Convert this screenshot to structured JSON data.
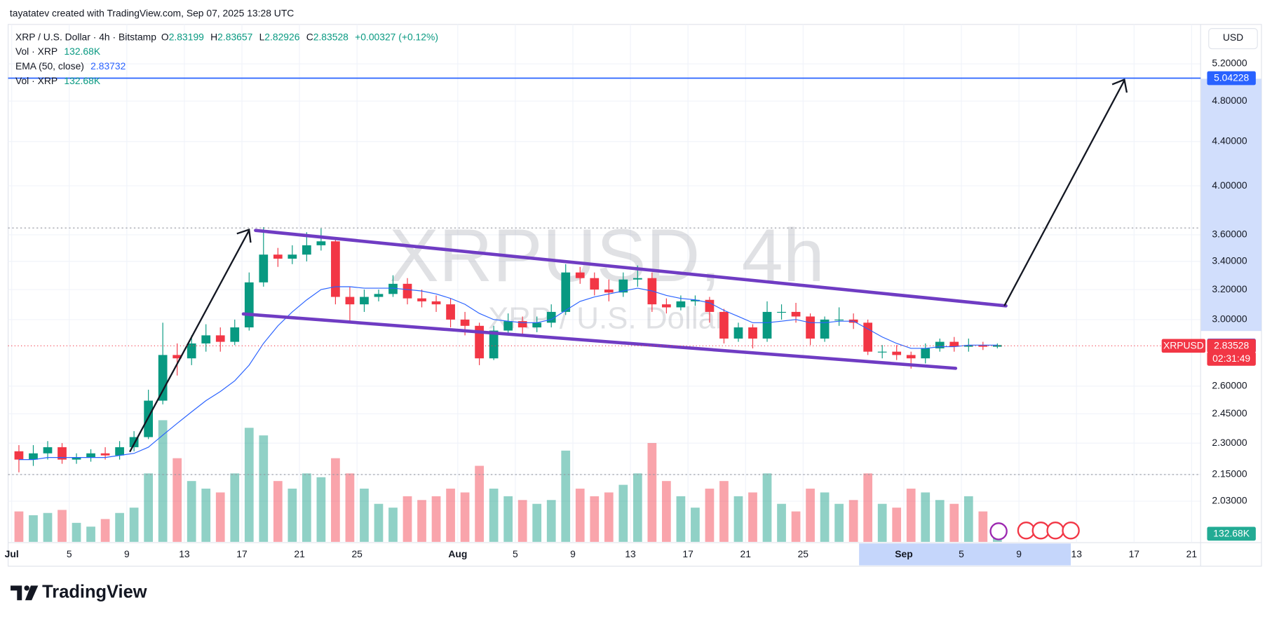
{
  "header": {
    "attribution": "tayatatev created with TradingView.com, Sep 07, 2025 13:28 UTC",
    "logo": "TradingView"
  },
  "legend": {
    "title": "XRP / U.S. Dollar · 4h · Bitstamp",
    "ohlc": [
      {
        "label": "O",
        "value": "2.83199"
      },
      {
        "label": "H",
        "value": "2.83657"
      },
      {
        "label": "L",
        "value": "2.82926"
      },
      {
        "label": "C",
        "value": "2.83528"
      }
    ],
    "change": "+0.00327 (+0.12%)",
    "rows": [
      {
        "label": "Vol · XRP",
        "value": "132.68K"
      },
      {
        "label": "EMA (50, close)",
        "value": "2.83732"
      },
      {
        "label": "Vol · XRP",
        "value": "132.68K"
      }
    ]
  },
  "watermark": {
    "title": "XRPUSD, 4h",
    "subtitle": "XRP / U.S. Dollar"
  },
  "currency": "USD",
  "chart_data": {
    "type": "candlestick",
    "x": [
      "2025-07-01",
      "2025-07-02",
      "2025-07-03",
      "2025-07-04",
      "2025-07-05",
      "2025-07-06",
      "2025-07-07",
      "2025-07-08",
      "2025-07-09",
      "2025-07-10",
      "2025-07-11",
      "2025-07-12",
      "2025-07-13",
      "2025-07-14",
      "2025-07-15",
      "2025-07-16",
      "2025-07-17",
      "2025-07-18",
      "2025-07-19",
      "2025-07-20",
      "2025-07-21",
      "2025-07-22",
      "2025-07-23",
      "2025-07-24",
      "2025-07-25",
      "2025-07-26",
      "2025-07-27",
      "2025-07-28",
      "2025-07-29",
      "2025-07-30",
      "2025-07-31",
      "2025-08-01",
      "2025-08-02",
      "2025-08-03",
      "2025-08-04",
      "2025-08-05",
      "2025-08-06",
      "2025-08-07",
      "2025-08-08",
      "2025-08-09",
      "2025-08-10",
      "2025-08-11",
      "2025-08-12",
      "2025-08-13",
      "2025-08-14",
      "2025-08-15",
      "2025-08-16",
      "2025-08-17",
      "2025-08-18",
      "2025-08-19",
      "2025-08-20",
      "2025-08-21",
      "2025-08-22",
      "2025-08-23",
      "2025-08-24",
      "2025-08-25",
      "2025-08-26",
      "2025-08-27",
      "2025-08-28",
      "2025-08-29",
      "2025-08-30",
      "2025-08-31",
      "2025-09-01",
      "2025-09-02",
      "2025-09-03",
      "2025-09-04",
      "2025-09-05",
      "2025-09-06",
      "2025-09-07"
    ],
    "open": [
      2.26,
      2.22,
      2.25,
      2.28,
      2.22,
      2.23,
      2.25,
      2.24,
      2.28,
      2.33,
      2.52,
      2.78,
      2.76,
      2.85,
      2.9,
      2.86,
      2.95,
      3.25,
      3.45,
      3.42,
      3.45,
      3.52,
      3.55,
      3.15,
      3.1,
      3.15,
      3.17,
      3.24,
      3.14,
      3.12,
      3.1,
      3.0,
      2.96,
      2.76,
      2.93,
      2.99,
      2.95,
      2.98,
      3.05,
      3.32,
      3.28,
      3.2,
      3.18,
      3.27,
      3.28,
      3.1,
      3.08,
      3.12,
      3.13,
      3.05,
      2.88,
      2.95,
      2.88,
      3.05,
      3.05,
      3.02,
      2.88,
      3.0,
      3.0,
      2.98,
      2.8,
      2.8,
      2.78,
      2.76,
      2.82,
      2.86,
      2.83,
      2.84,
      2.83
    ],
    "high": [
      2.29,
      2.29,
      2.31,
      2.3,
      2.25,
      2.27,
      2.28,
      2.31,
      2.36,
      2.58,
      2.98,
      2.85,
      2.9,
      2.97,
      2.95,
      3.0,
      3.32,
      3.66,
      3.5,
      3.52,
      3.62,
      3.65,
      3.57,
      3.22,
      3.2,
      3.2,
      3.3,
      3.28,
      3.2,
      3.16,
      3.14,
      3.05,
      2.98,
      2.96,
      3.04,
      3.02,
      3.02,
      3.1,
      3.38,
      3.36,
      3.32,
      3.27,
      3.32,
      3.37,
      3.32,
      3.14,
      3.16,
      3.16,
      3.15,
      3.07,
      2.98,
      2.97,
      3.12,
      3.1,
      3.11,
      3.04,
      3.02,
      3.08,
      3.04,
      3.0,
      2.84,
      2.84,
      2.8,
      2.85,
      2.88,
      2.89,
      2.88,
      2.86,
      2.85
    ],
    "low": [
      2.16,
      2.19,
      2.22,
      2.2,
      2.2,
      2.21,
      2.22,
      2.22,
      2.26,
      2.32,
      2.5,
      2.66,
      2.72,
      2.8,
      2.8,
      2.84,
      2.93,
      3.22,
      3.36,
      3.38,
      3.4,
      3.48,
      3.1,
      2.99,
      3.05,
      3.12,
      3.15,
      3.1,
      3.08,
      3.05,
      2.95,
      2.9,
      2.72,
      2.75,
      2.9,
      2.9,
      2.92,
      2.95,
      3.03,
      3.24,
      3.16,
      3.12,
      3.15,
      3.22,
      3.05,
      3.04,
      3.06,
      3.09,
      2.98,
      2.85,
      2.86,
      2.82,
      2.86,
      3.0,
      2.98,
      2.84,
      2.86,
      2.96,
      2.94,
      2.78,
      2.76,
      2.75,
      2.7,
      2.73,
      2.8,
      2.8,
      2.8,
      2.81,
      2.82
    ],
    "close": [
      2.22,
      2.25,
      2.28,
      2.22,
      2.23,
      2.25,
      2.24,
      2.28,
      2.33,
      2.52,
      2.78,
      2.76,
      2.85,
      2.9,
      2.86,
      2.95,
      3.25,
      3.45,
      3.42,
      3.45,
      3.52,
      3.55,
      3.15,
      3.1,
      3.15,
      3.17,
      3.24,
      3.14,
      3.12,
      3.1,
      3.0,
      2.96,
      2.76,
      2.93,
      2.99,
      2.95,
      2.98,
      3.05,
      3.32,
      3.28,
      3.2,
      3.18,
      3.27,
      3.28,
      3.1,
      3.08,
      3.12,
      3.13,
      3.05,
      2.88,
      2.95,
      2.88,
      3.05,
      3.05,
      3.02,
      2.88,
      3.0,
      3.0,
      2.98,
      2.8,
      2.8,
      2.78,
      2.76,
      2.82,
      2.86,
      2.83,
      2.84,
      2.83,
      2.84
    ],
    "volume": [
      400,
      350,
      380,
      420,
      250,
      200,
      300,
      380,
      450,
      900,
      1600,
      1100,
      800,
      700,
      650,
      900,
      1500,
      1400,
      800,
      700,
      900,
      850,
      1100,
      900,
      700,
      500,
      450,
      600,
      550,
      600,
      700,
      650,
      1000,
      700,
      600,
      550,
      500,
      550,
      1200,
      700,
      600,
      650,
      750,
      900,
      1300,
      800,
      600,
      450,
      700,
      800,
      600,
      650,
      900,
      500,
      400,
      700,
      650,
      500,
      550,
      900,
      500,
      450,
      700,
      650,
      550,
      500,
      600,
      400,
      150
    ],
    "ema": [
      2.22,
      2.22,
      2.23,
      2.23,
      2.23,
      2.23,
      2.23,
      2.24,
      2.25,
      2.28,
      2.34,
      2.4,
      2.46,
      2.52,
      2.57,
      2.63,
      2.72,
      2.85,
      2.96,
      3.05,
      3.13,
      3.2,
      3.22,
      3.22,
      3.21,
      3.21,
      3.21,
      3.2,
      3.19,
      3.17,
      3.14,
      3.1,
      3.04,
      3.0,
      2.99,
      2.98,
      2.98,
      3.0,
      3.06,
      3.12,
      3.15,
      3.17,
      3.19,
      3.21,
      3.19,
      3.16,
      3.14,
      3.13,
      3.11,
      3.06,
      3.02,
      2.98,
      2.98,
      2.99,
      3.0,
      2.98,
      2.98,
      2.99,
      2.99,
      2.94,
      2.89,
      2.85,
      2.82,
      2.82,
      2.83,
      2.83,
      2.84,
      2.84,
      2.84
    ],
    "up_color": "#089981",
    "down_color": "#f23645",
    "ema_color": "#2962ff",
    "log": true,
    "grid": true,
    "ylim": [
      1.86,
      5.66
    ],
    "yticks": [
      {
        "value": 2.03,
        "label": "2.03000"
      },
      {
        "value": 2.15,
        "label": "2.15000"
      },
      {
        "value": 2.3,
        "label": "2.30000"
      },
      {
        "value": 2.45,
        "label": "2.45000"
      },
      {
        "value": 2.6,
        "label": "2.60000"
      },
      {
        "value": 3.0,
        "label": "3.00000"
      },
      {
        "value": 3.2,
        "label": "3.20000"
      },
      {
        "value": 3.4,
        "label": "3.40000"
      },
      {
        "value": 3.6,
        "label": "3.60000"
      },
      {
        "value": 4.0,
        "label": "4.00000"
      },
      {
        "value": 4.4,
        "label": "4.40000"
      },
      {
        "value": 4.8,
        "label": "4.80000"
      },
      {
        "value": 5.2,
        "label": "5.20000"
      }
    ],
    "xlim": [
      "2025-06-30T18:00:00Z",
      "2025-09-21T15:00:00Z"
    ],
    "xticks": [
      {
        "value": "2025-07-01",
        "label": "Jul"
      },
      {
        "value": "2025-07-05",
        "label": "5"
      },
      {
        "value": "2025-07-09",
        "label": "9"
      },
      {
        "value": "2025-07-13",
        "label": "13"
      },
      {
        "value": "2025-07-17",
        "label": "17"
      },
      {
        "value": "2025-07-21",
        "label": "21"
      },
      {
        "value": "2025-07-25",
        "label": "25"
      },
      {
        "value": "2025-08-01",
        "label": "Aug"
      },
      {
        "value": "2025-08-05",
        "label": "5"
      },
      {
        "value": "2025-08-09",
        "label": "9"
      },
      {
        "value": "2025-08-13",
        "label": "13"
      },
      {
        "value": "2025-08-17",
        "label": "17"
      },
      {
        "value": "2025-08-21",
        "label": "21"
      },
      {
        "value": "2025-08-25",
        "label": "25"
      },
      {
        "value": "2025-09-01",
        "label": "Sep"
      },
      {
        "value": "2025-09-05",
        "label": "5"
      },
      {
        "value": "2025-09-09",
        "label": "9"
      },
      {
        "value": "2025-09-13",
        "label": "13"
      },
      {
        "value": "2025-09-17",
        "label": "17"
      },
      {
        "value": "2025-09-21",
        "label": "21"
      }
    ],
    "target_line": {
      "value": 5.04228,
      "label": "5.04228"
    },
    "ema_tag": {
      "value": 2.83732,
      "label": "2.83732"
    },
    "last_price": {
      "value": 2.83528,
      "label": "2.83528"
    },
    "symbol_tag": "XRPUSD",
    "countdown": "02:31:49",
    "volume_tag": "132.68K"
  }
}
